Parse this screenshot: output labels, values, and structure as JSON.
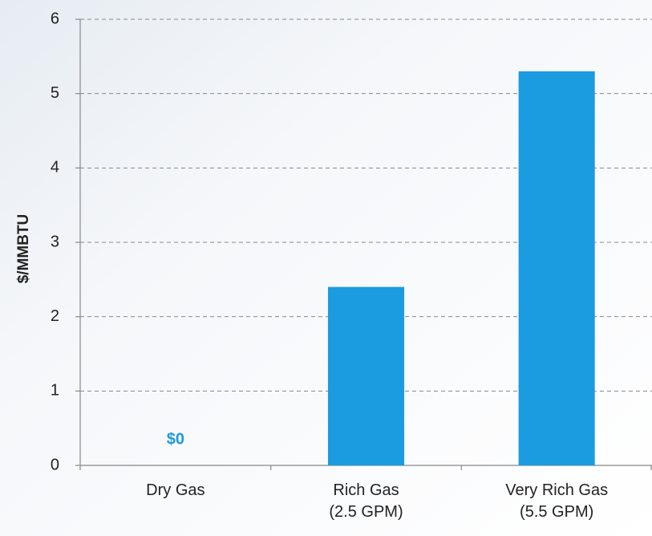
{
  "chart_data": {
    "type": "bar",
    "y_label": "$/MMBTU",
    "categories": [
      "Dry Gas",
      "Rich Gas\n(2.5 GPM)",
      "Very Rich Gas\n(5.5 GPM)"
    ],
    "values": [
      0,
      2.4,
      5.3
    ],
    "value_labels": [
      "$0",
      null,
      null
    ],
    "color": "#1b9be0",
    "ylim": [
      0,
      6
    ],
    "yticks": [
      0,
      1,
      2,
      3,
      4,
      5,
      6
    ],
    "grid": true
  }
}
